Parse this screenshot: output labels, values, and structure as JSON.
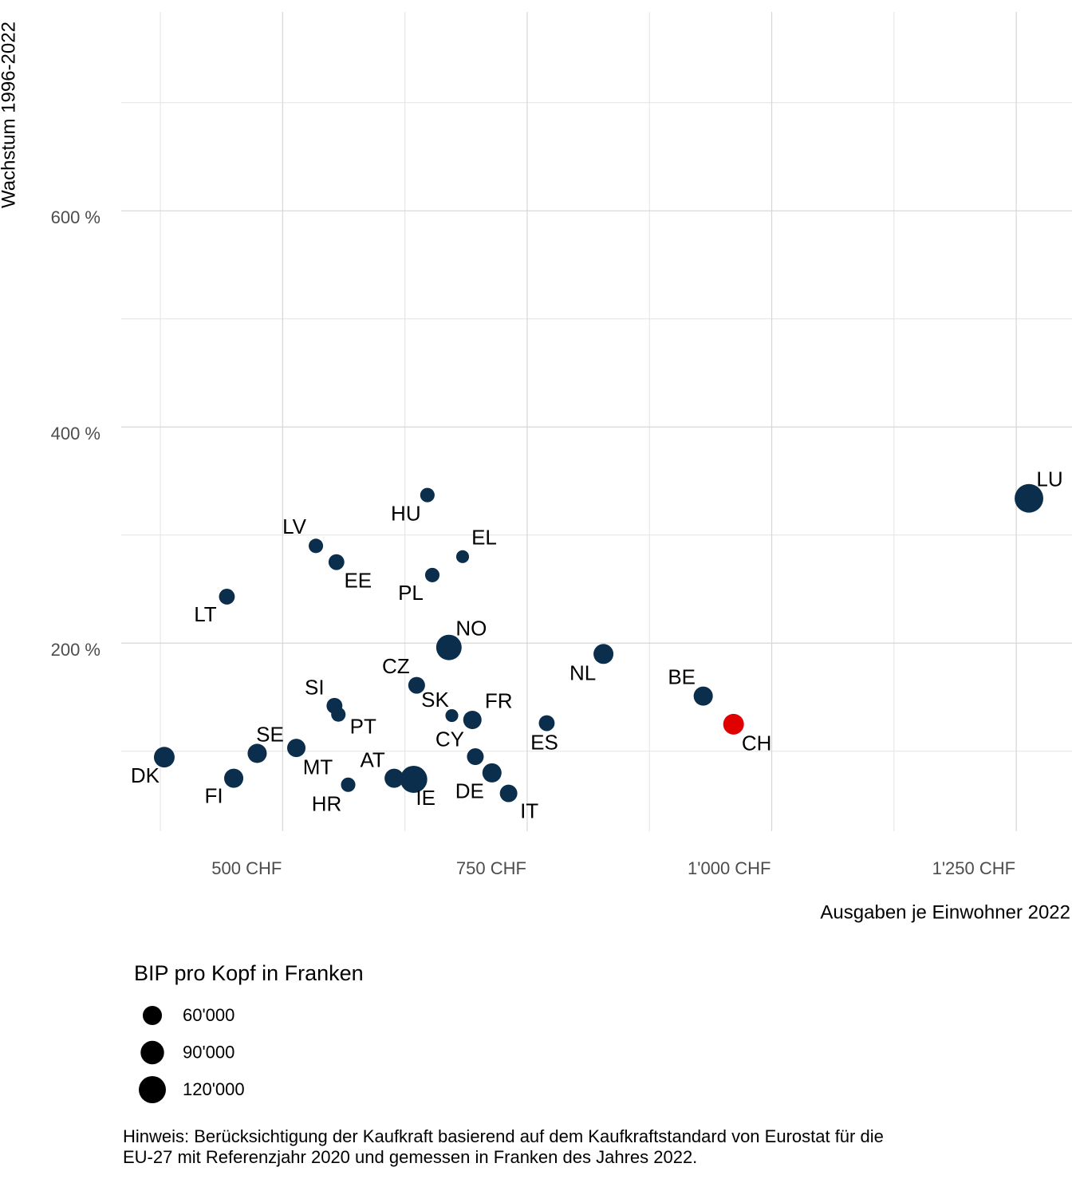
{
  "chart_data": {
    "type": "scatter",
    "x_label": "Ausgaben je Einwohner 2022",
    "y_label": "Wachstum 1996-2022",
    "categories": [
      "DK",
      "FI",
      "SE",
      "MT",
      "SI",
      "PT",
      "HR",
      "EE",
      "LV",
      "LT",
      "AT",
      "IE",
      "HU",
      "PL",
      "CZ",
      "NO",
      "SK",
      "EL",
      "CY",
      "FR",
      "DE",
      "IT",
      "ES",
      "NL",
      "BE",
      "CH",
      "LU"
    ],
    "x": [
      379,
      450,
      474,
      514,
      553,
      557,
      567,
      555,
      534,
      443,
      614,
      634,
      648,
      653,
      637,
      670,
      673,
      684,
      697,
      694,
      714,
      731,
      770,
      828,
      930,
      961,
      1263
    ],
    "values": [
      94.5,
      75,
      98,
      103,
      142,
      134,
      69,
      275,
      290,
      243,
      75,
      74,
      337,
      263,
      161,
      196,
      133,
      280,
      95,
      129,
      80,
      61,
      126,
      190,
      151,
      125,
      334
    ],
    "sizes": [
      70000,
      60000,
      60000,
      55000,
      41000,
      34000,
      34000,
      41000,
      34000,
      41000,
      60000,
      120000,
      34000,
      34000,
      46000,
      106000,
      27000,
      27000,
      46000,
      55000,
      60000,
      50000,
      41000,
      65000,
      60000,
      70000,
      134000
    ],
    "colors": [
      "#0b2e4d",
      "#0b2e4d",
      "#0b2e4d",
      "#0b2e4d",
      "#0b2e4d",
      "#0b2e4d",
      "#0b2e4d",
      "#0b2e4d",
      "#0b2e4d",
      "#0b2e4d",
      "#0b2e4d",
      "#0b2e4d",
      "#0b2e4d",
      "#0b2e4d",
      "#0b2e4d",
      "#0b2e4d",
      "#0b2e4d",
      "#0b2e4d",
      "#0b2e4d",
      "#0b2e4d",
      "#0b2e4d",
      "#0b2e4d",
      "#0b2e4d",
      "#0b2e4d",
      "#0b2e4d",
      "#e00000",
      "#0b2e4d"
    ],
    "xlim": [
      335,
      1307
    ],
    "ylim": [
      26,
      784
    ],
    "xticks": [
      {
        "value": 500,
        "label": "500 CHF"
      },
      {
        "value": 750,
        "label": "750 CHF"
      },
      {
        "value": 1000,
        "label": "1'000 CHF"
      },
      {
        "value": 1250,
        "label": "1'250 CHF"
      }
    ],
    "yticks": [
      {
        "value": 200,
        "label": "200 %"
      },
      {
        "value": 400,
        "label": "400 %"
      },
      {
        "value": 600,
        "label": "600 %"
      }
    ],
    "xminor": [
      375,
      625,
      875,
      1125
    ],
    "yminor": [
      100,
      300,
      500,
      700
    ],
    "grid": true,
    "size_legend": {
      "title": "BIP pro Kopf in Franken",
      "values": [
        60000,
        90000,
        120000
      ],
      "value_labels": [
        "60'000",
        "90'000",
        "120'000"
      ]
    },
    "note": [
      "Hinweis: Berücksichtigung der Kaufkraft basierend auf dem Kaufkraftstandard von Eurostat für die",
      "EU-27 mit Referenzjahr 2020 und gemessen in Franken des Jahres 2022."
    ]
  }
}
